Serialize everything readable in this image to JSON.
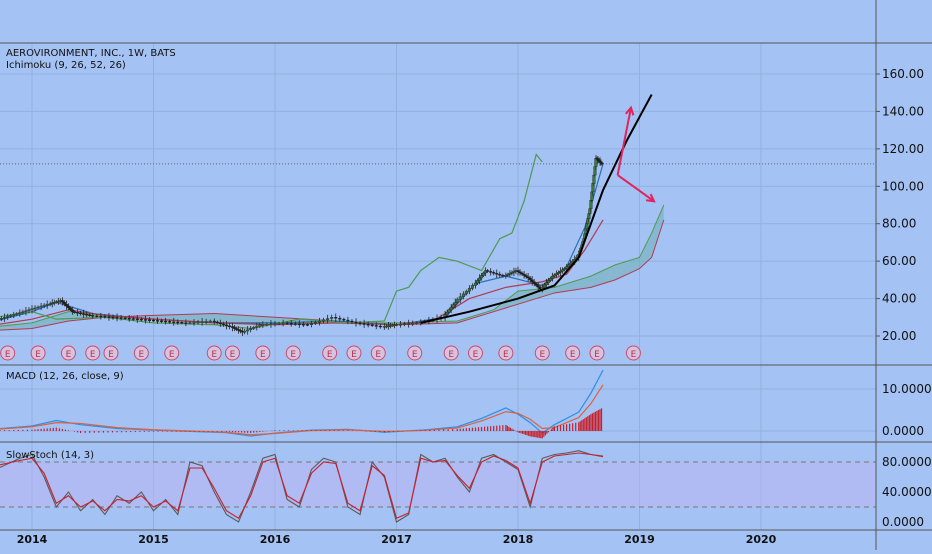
{
  "header": {
    "symbol_title": "AEROVIRONMENT, INC., 1W, BATS",
    "ichimoku_label": "Ichimoku (9, 26, 52, 26)",
    "macd_label": "MACD (12, 26, close, 9)",
    "stoch_label": "SlowStoch (14, 3)"
  },
  "earnings_marker_label": "E",
  "colors": {
    "background": "#a4c2f4",
    "grid": "#93b0e0",
    "candle_up": "#3a7a3a",
    "candle_down": "#1a1a1a",
    "tenkan": "#2b6fb5",
    "kijun": "#b23a4e",
    "chikou": "#4f9a4f",
    "cloud": "#6fb0b4",
    "trend_line": "#000000",
    "arrow": "#e0245e",
    "macd": "#2b8fe6",
    "signal": "#e0603a",
    "hist": "#c8202a",
    "stoch_k": "#5a5a5a",
    "stoch_d": "#c8202a",
    "band": "#b9b4f2"
  },
  "chart_data": [
    {
      "type": "line",
      "name": "price",
      "x_ticks": [
        "2014",
        "2015",
        "2016",
        "2017",
        "2018",
        "2019",
        "2020"
      ],
      "y_ticks": [
        "20.00",
        "40.00",
        "60.00",
        "80.00",
        "100.00",
        "120.00",
        "140.00",
        "160.00"
      ],
      "ylim": [
        13,
        170
      ],
      "last_price": 112,
      "x": [
        2013.7,
        2013.85,
        2014.0,
        2014.15,
        2014.25,
        2014.35,
        2014.5,
        2014.7,
        2014.9,
        2015.1,
        2015.3,
        2015.5,
        2015.65,
        2015.75,
        2015.9,
        2016.1,
        2016.3,
        2016.5,
        2016.7,
        2016.9,
        2017.0,
        2017.2,
        2017.4,
        2017.5,
        2017.65,
        2017.75,
        2017.9,
        2018.0,
        2018.1,
        2018.2,
        2018.3,
        2018.4,
        2018.5,
        2018.55,
        2018.6,
        2018.65,
        2018.7
      ],
      "y": [
        28,
        31,
        34,
        37,
        39,
        33,
        31,
        30,
        29,
        28,
        27,
        28,
        25,
        22,
        26,
        27,
        26,
        30,
        27,
        25,
        26,
        27,
        30,
        38,
        47,
        55,
        52,
        55,
        51,
        45,
        52,
        56,
        62,
        72,
        88,
        115,
        112
      ],
      "earnings_x": [
        2013.8,
        2014.05,
        2014.3,
        2014.5,
        2014.65,
        2014.9,
        2015.15,
        2015.5,
        2015.65,
        2015.9,
        2016.15,
        2016.45,
        2016.65,
        2016.85,
        2017.15,
        2017.45,
        2017.65,
        2017.9,
        2018.2,
        2018.45,
        2018.65,
        2018.95
      ],
      "trend_line": {
        "x": [
          2017.2,
          2017.6,
          2018.0,
          2018.3,
          2018.5,
          2018.7,
          2018.9,
          2019.1
        ],
        "y": [
          27,
          33,
          40,
          47,
          62,
          98,
          125,
          149
        ]
      },
      "arrows": [
        {
          "from": [
            2018.82,
            106
          ],
          "to": [
            2018.93,
            142
          ]
        },
        {
          "from": [
            2018.82,
            106
          ],
          "to": [
            2019.12,
            92
          ]
        }
      ],
      "series": [
        {
          "x": [
            2013.7,
            2014.0,
            2014.2,
            2014.5,
            2015.0,
            2015.5,
            2016.0,
            2016.5,
            2017.0,
            2017.4,
            2017.65,
            2017.9,
            2018.2,
            2018.4,
            2018.55,
            2018.7
          ],
          "values": [
            28,
            33,
            38,
            32,
            29,
            27,
            27,
            28,
            26,
            30,
            48,
            52,
            47,
            57,
            78,
            112
          ]
        },
        {
          "x": [
            2013.7,
            2014.0,
            2014.3,
            2014.6,
            2015.0,
            2015.5,
            2016.0,
            2016.5,
            2017.0,
            2017.3,
            2017.6,
            2017.9,
            2018.2,
            2018.4,
            2018.55,
            2018.7
          ],
          "values": [
            26,
            29,
            34,
            31,
            29,
            27,
            26,
            27,
            26,
            28,
            40,
            46,
            49,
            53,
            66,
            82
          ]
        },
        {
          "x": [
            2013.7,
            2014.0,
            2014.2,
            2014.6,
            2015.0,
            2015.5,
            2015.8,
            2016.2,
            2016.6,
            2016.9,
            2017.0,
            2017.1,
            2017.2,
            2017.35,
            2017.5,
            2017.7,
            2017.85,
            2017.95,
            2018.05,
            2018.15,
            2018.2
          ],
          "values": [
            30,
            33,
            29,
            30,
            27,
            26,
            24,
            29,
            27,
            28,
            44,
            46,
            55,
            62,
            60,
            55,
            72,
            75,
            92,
            117,
            113
          ]
        }
      ],
      "cloud": {
        "x": [
          2013.7,
          2014.0,
          2014.3,
          2014.6,
          2015.0,
          2015.5,
          2016.0,
          2016.5,
          2017.0,
          2017.5,
          2017.8,
          2018.0,
          2018.3,
          2018.6,
          2018.8,
          2019.0,
          2019.1,
          2019.2
        ],
        "span_a": [
          25,
          27,
          33,
          31,
          29,
          27,
          27,
          27,
          27,
          28,
          34,
          44,
          46,
          52,
          58,
          62,
          75,
          90
        ],
        "span_b": [
          23,
          24,
          28,
          30,
          31,
          32,
          30,
          28,
          26,
          27,
          33,
          37,
          43,
          46,
          50,
          56,
          62,
          82
        ]
      }
    },
    {
      "type": "line",
      "name": "macd",
      "y_ticks": [
        "0.0000",
        "10.0000"
      ],
      "ylim": [
        -3,
        17
      ],
      "x": [
        2013.7,
        2014.0,
        2014.2,
        2014.4,
        2014.7,
        2015.0,
        2015.3,
        2015.6,
        2015.8,
        2016.0,
        2016.3,
        2016.6,
        2016.9,
        2017.2,
        2017.5,
        2017.7,
        2017.9,
        2018.0,
        2018.1,
        2018.2,
        2018.3,
        2018.5,
        2018.6,
        2018.7
      ],
      "series": [
        {
          "values": [
            0.5,
            1.2,
            2.5,
            1.5,
            0.6,
            0.2,
            -0.1,
            -0.4,
            -1.2,
            -0.5,
            0.2,
            0.4,
            -0.3,
            0.2,
            1.0,
            3.0,
            5.5,
            4.0,
            2.0,
            -0.5,
            1.5,
            4.5,
            9.0,
            14.5
          ]
        },
        {
          "values": [
            0.4,
            1.0,
            2.0,
            1.8,
            0.8,
            0.3,
            0.0,
            -0.3,
            -0.9,
            -0.6,
            0.1,
            0.3,
            -0.1,
            0.1,
            0.7,
            2.4,
            4.6,
            4.2,
            2.8,
            0.6,
            0.8,
            3.2,
            6.5,
            11.0
          ]
        }
      ]
    },
    {
      "type": "line",
      "name": "slowstoch",
      "y_ticks": [
        "0.0000",
        "40.0000",
        "80.0000"
      ],
      "ylim": [
        -5,
        105
      ],
      "band": [
        20,
        80
      ],
      "x": [
        2013.7,
        2013.9,
        2014.0,
        2014.1,
        2014.2,
        2014.3,
        2014.4,
        2014.5,
        2014.6,
        2014.7,
        2014.8,
        2014.9,
        2015.0,
        2015.1,
        2015.2,
        2015.3,
        2015.4,
        2015.5,
        2015.6,
        2015.7,
        2015.8,
        2015.9,
        2016.0,
        2016.1,
        2016.2,
        2016.3,
        2016.4,
        2016.5,
        2016.6,
        2016.7,
        2016.8,
        2016.9,
        2017.0,
        2017.1,
        2017.2,
        2017.3,
        2017.4,
        2017.5,
        2017.6,
        2017.7,
        2017.8,
        2017.9,
        2018.0,
        2018.1,
        2018.2,
        2018.3,
        2018.4,
        2018.5,
        2018.6,
        2018.7
      ],
      "series": [
        {
          "values": [
            70,
            85,
            90,
            60,
            20,
            40,
            15,
            30,
            10,
            35,
            25,
            40,
            15,
            30,
            10,
            80,
            75,
            40,
            10,
            0,
            40,
            85,
            90,
            30,
            20,
            70,
            85,
            80,
            20,
            10,
            80,
            60,
            0,
            10,
            90,
            80,
            85,
            60,
            40,
            85,
            90,
            80,
            70,
            20,
            85,
            90,
            92,
            95,
            90,
            88
          ]
        },
        {
          "values": [
            75,
            82,
            85,
            65,
            25,
            35,
            20,
            28,
            15,
            30,
            28,
            35,
            20,
            28,
            15,
            72,
            72,
            45,
            15,
            5,
            35,
            80,
            85,
            35,
            25,
            65,
            80,
            78,
            25,
            15,
            75,
            62,
            5,
            12,
            85,
            80,
            82,
            62,
            45,
            80,
            88,
            82,
            72,
            25,
            80,
            88,
            90,
            92,
            90,
            87
          ]
        }
      ]
    }
  ]
}
